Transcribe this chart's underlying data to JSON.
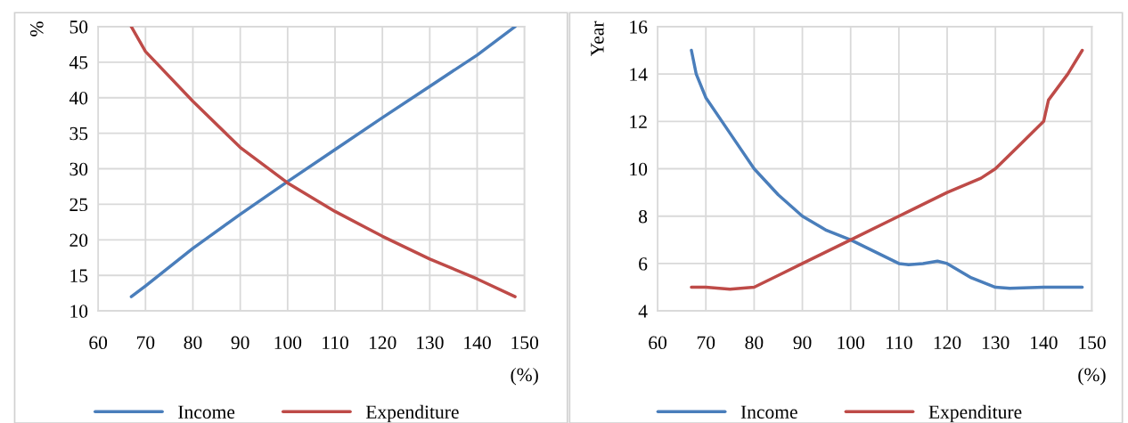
{
  "chart_data": [
    {
      "type": "line",
      "ylabel": "%",
      "xlabel": "(%)",
      "xlim": [
        60,
        150
      ],
      "xticks": [
        60,
        70,
        80,
        90,
        100,
        110,
        120,
        130,
        140,
        150
      ],
      "ylim": [
        10,
        50
      ],
      "yticks": [
        10,
        15,
        20,
        25,
        30,
        35,
        40,
        45,
        50
      ],
      "grid": true,
      "legend": "bottom",
      "line_style": "solid",
      "series": [
        {
          "name": "Income",
          "color": "#4a7ebb",
          "x": [
            67,
            70,
            80,
            90,
            100,
            110,
            120,
            130,
            140,
            148
          ],
          "values": [
            12,
            13.5,
            18.8,
            23.6,
            28.2,
            32.7,
            37.2,
            41.6,
            46,
            50
          ]
        },
        {
          "name": "Expenditure",
          "color": "#be4b48",
          "x": [
            67,
            70,
            80,
            90,
            100,
            110,
            120,
            130,
            140,
            148
          ],
          "values": [
            50,
            46.5,
            39.5,
            33,
            28,
            24,
            20.5,
            17.3,
            14.5,
            12
          ]
        }
      ]
    },
    {
      "type": "line",
      "ylabel": "Year",
      "xlabel": "(%)",
      "xlim": [
        60,
        150
      ],
      "xticks": [
        60,
        70,
        80,
        90,
        100,
        110,
        120,
        130,
        140,
        150
      ],
      "ylim": [
        4,
        16
      ],
      "yticks": [
        4,
        6,
        8,
        10,
        12,
        14,
        16
      ],
      "grid": true,
      "legend": "bottom",
      "line_style": "solid",
      "series": [
        {
          "name": "Income",
          "color": "#4a7ebb",
          "x": [
            67,
            68,
            70,
            75,
            80,
            85,
            90,
            95,
            100,
            105,
            110,
            112,
            115,
            118,
            120,
            125,
            130,
            133,
            140,
            148
          ],
          "values": [
            15,
            14,
            13,
            11.5,
            10,
            8.9,
            8,
            7.4,
            7,
            6.5,
            6,
            5.95,
            6,
            6.1,
            6,
            5.4,
            5,
            4.95,
            5,
            5
          ]
        },
        {
          "name": "Expenditure",
          "color": "#be4b48",
          "x": [
            67,
            70,
            75,
            80,
            85,
            90,
            100,
            110,
            120,
            127,
            130,
            135,
            140,
            141,
            145,
            148
          ],
          "values": [
            5,
            5,
            4.92,
            5,
            5.5,
            6,
            7,
            8,
            9,
            9.6,
            10,
            11,
            12,
            12.9,
            14,
            15
          ]
        }
      ]
    }
  ]
}
